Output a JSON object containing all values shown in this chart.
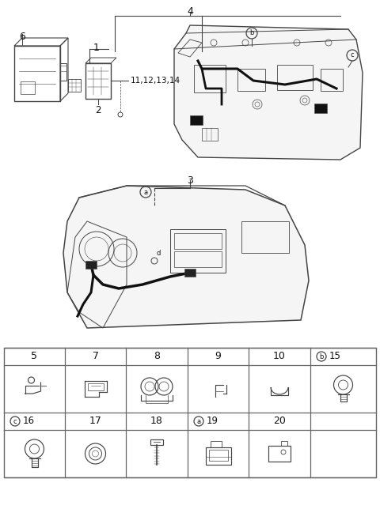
{
  "bg_color": "#ffffff",
  "line_color": "#444444",
  "grid_color": "#666666",
  "text_color": "#111111",
  "label_4": "4",
  "label_1": "1",
  "label_2": "2",
  "label_3": "3",
  "label_6": "6",
  "label_11_14": "11,12,13,14",
  "table_row1_nums": [
    "5",
    "7",
    "8",
    "9",
    "10"
  ],
  "table_row1_b15": "15",
  "table_row2_nums": [
    "17",
    "18",
    "20"
  ],
  "table_row2_c16": "16",
  "table_row2_a19": "19",
  "figsize": [
    4.8,
    6.63
  ],
  "dpi": 100
}
